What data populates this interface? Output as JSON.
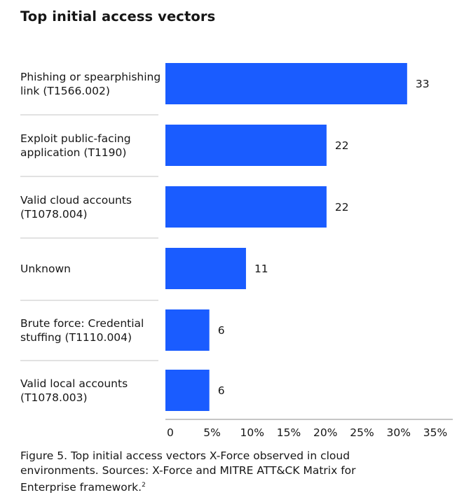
{
  "title": "Top initial access vectors",
  "caption": {
    "text": "Figure 5. Top initial access vectors X-Force observed in cloud environments. Sources: X-Force and MITRE ATT&CK Matrix for Enterprise framework.",
    "footnote": "2"
  },
  "colors": {
    "bar": "#1a5cff",
    "divider": "#c6c6c6",
    "axis": "#8d8d8d",
    "text": "#161616"
  },
  "chart_data": {
    "type": "bar",
    "orientation": "horizontal",
    "title": "Top initial access vectors",
    "categories": [
      [
        "Phishing or spearphishing",
        "link (T1566.002)"
      ],
      [
        "Exploit public-facing",
        "application (T1190)"
      ],
      [
        "Valid cloud accounts",
        "(T1078.004)"
      ],
      [
        "Unknown"
      ],
      [
        "Brute force: Credential",
        "stuffing (T1110.004)"
      ],
      [
        "Valid local accounts",
        "(T1078.003)"
      ]
    ],
    "values": [
      33,
      22,
      22,
      11,
      6,
      6
    ],
    "value_labels": [
      "33",
      "22",
      "22",
      "11",
      "6",
      "6"
    ],
    "xlim": [
      0,
      35
    ],
    "x_ticks": [
      "0",
      "5%",
      "10%",
      "15%",
      "20%",
      "25%",
      "30%",
      "35%"
    ],
    "grid": false,
    "legend": "none"
  }
}
